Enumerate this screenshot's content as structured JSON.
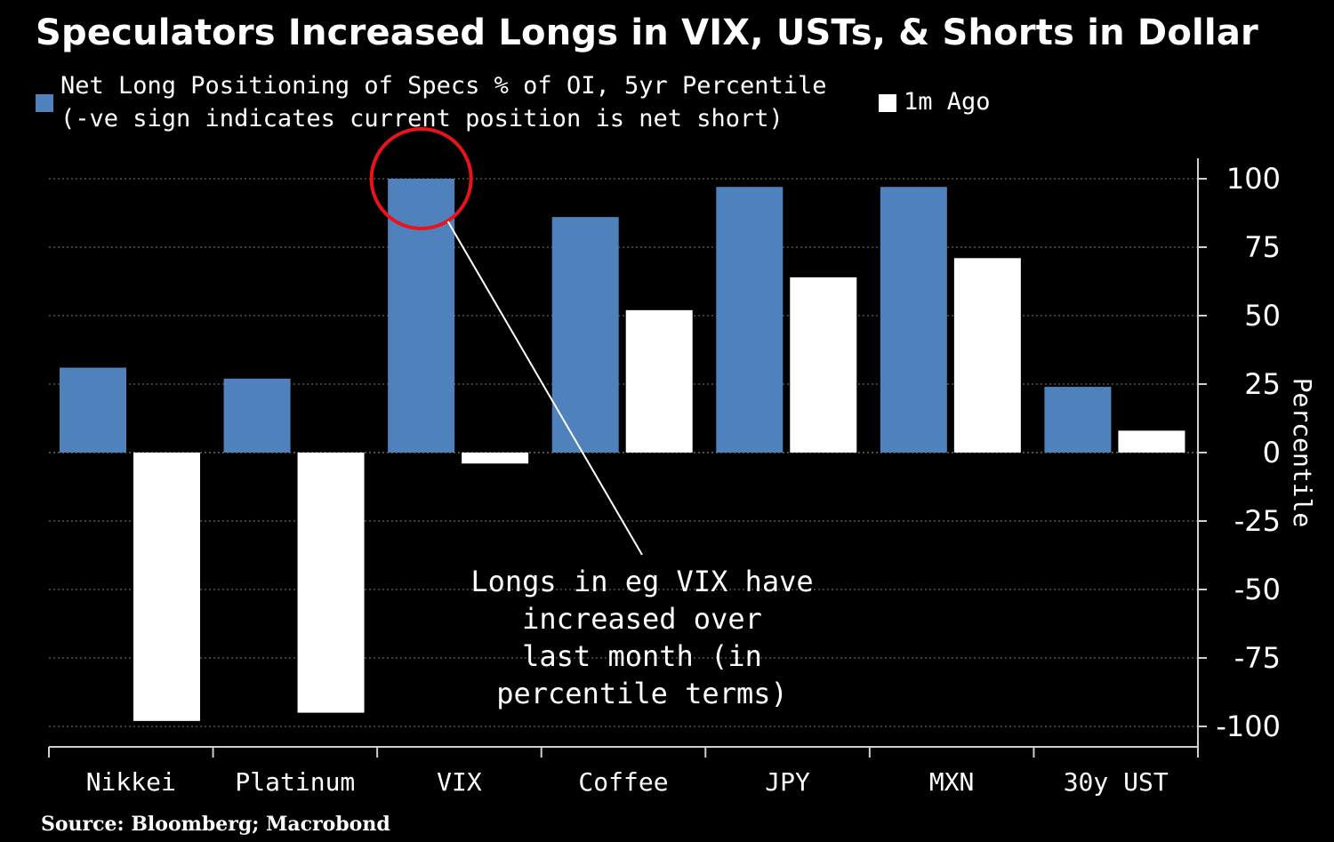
{
  "chart_data": {
    "type": "bar",
    "title": "Speculators Increased Longs in VIX, USTs, & Shorts in Dollar",
    "categories": [
      "Nikkei",
      "Platinum",
      "VIX",
      "Coffee",
      "JPY",
      "MXN",
      "30y UST"
    ],
    "series": [
      {
        "name": "Net Long Positioning of Specs % of OI, 5yr Percentile (-ve sign indicates current position is net short)",
        "name_lines": [
          "Net Long Positioning of Specs % of OI, 5yr Percentile",
          "(-ve sign indicates current position is net short)"
        ],
        "color": "#4f81bd",
        "values": [
          31,
          27,
          100,
          86,
          97,
          97,
          24
        ]
      },
      {
        "name": "1m Ago",
        "name_lines": [
          "1m Ago"
        ],
        "color": "#ffffff",
        "values": [
          -98,
          -95,
          -4,
          52,
          64,
          71,
          8
        ]
      }
    ],
    "ylabel": "Percentile",
    "ylim": [
      -100,
      100
    ],
    "yticks": [
      100,
      75,
      50,
      25,
      0,
      -25,
      -50,
      -75,
      -100
    ],
    "y_axis_side": "right",
    "grid": true,
    "legend_position": "top-left",
    "annotation": {
      "lines": [
        "Longs in eg VIX have",
        "increased over",
        "last month (in",
        "percentile terms)"
      ],
      "target_category": "VIX",
      "highlight_color": "#e8131b"
    },
    "source": "Source: Bloomberg; Macrobond"
  }
}
